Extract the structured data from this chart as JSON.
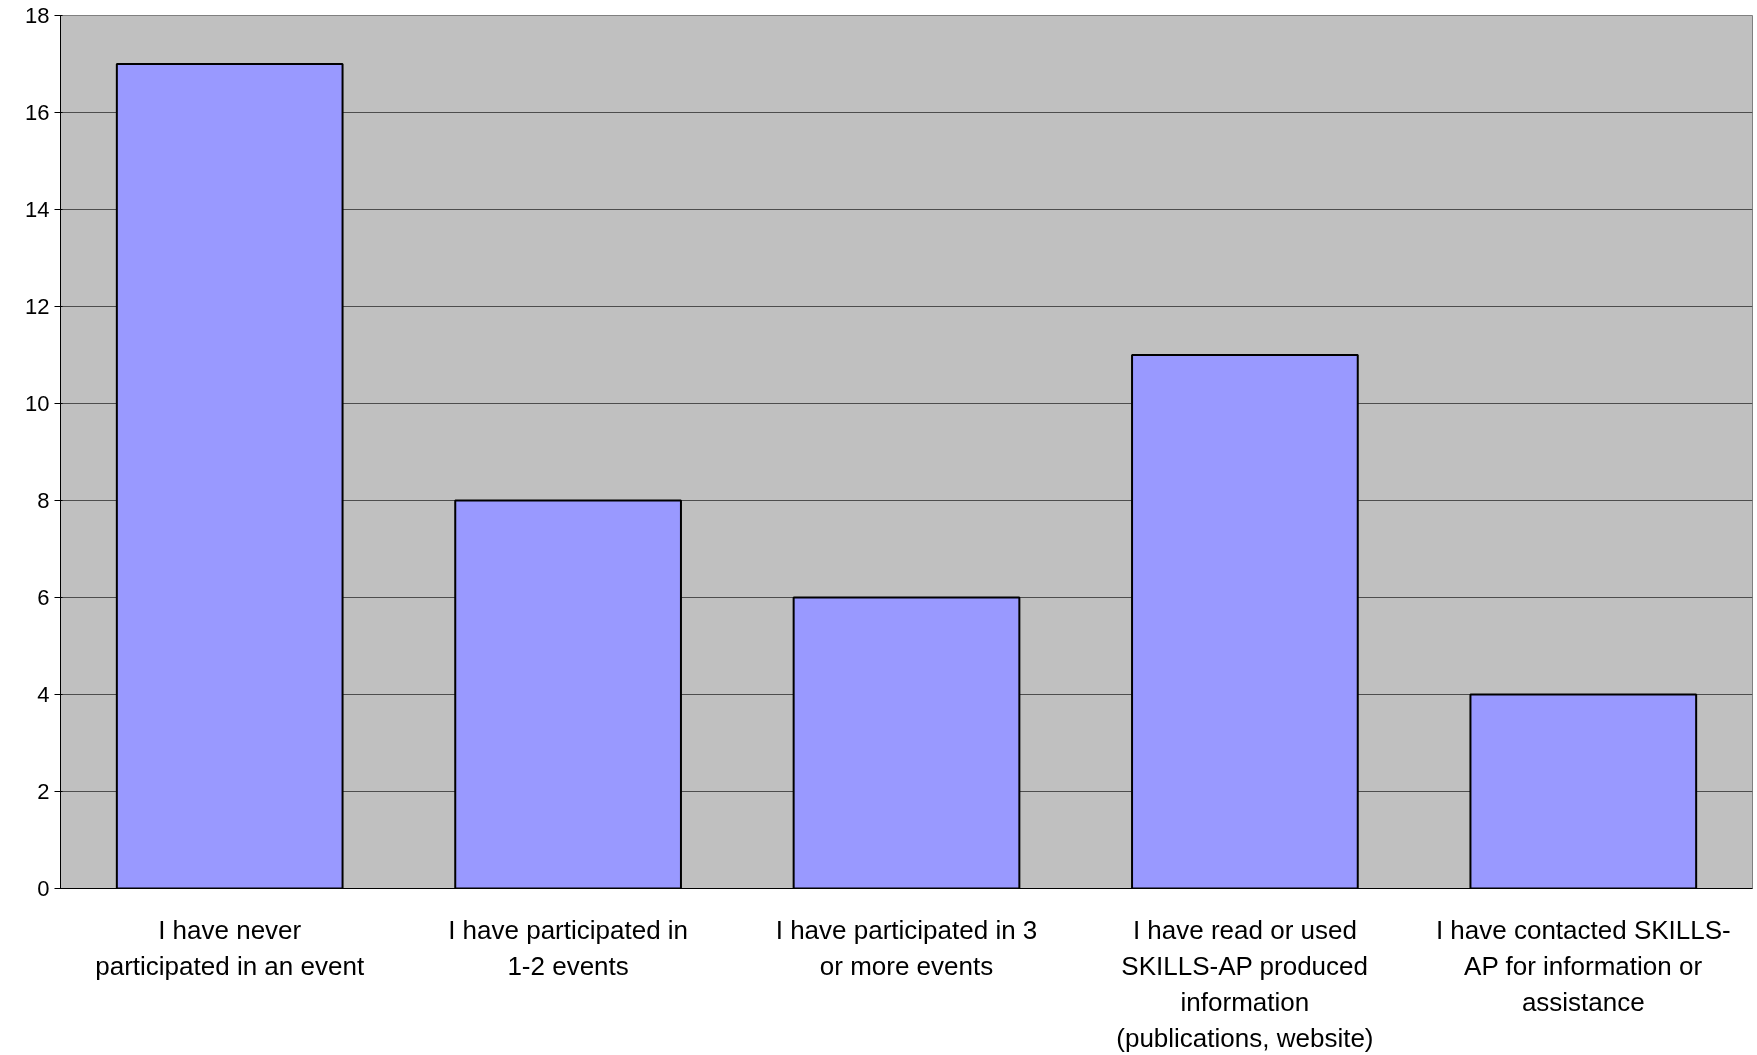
{
  "chart_data": {
    "type": "bar",
    "categories": [
      "I have never participated in an event",
      "I have participated in 1-2 events",
      "I have participated in 3 or more events",
      "I have read or used SKILLS-AP produced information (publications, website)",
      "I have contacted SKILLS-AP for information or assistance"
    ],
    "values": [
      17,
      8,
      6,
      11,
      4
    ],
    "color": "#9999ff",
    "ylim": [
      0,
      18
    ],
    "yticks": [
      0,
      2,
      4,
      6,
      8,
      10,
      12,
      14,
      16,
      18
    ],
    "grid": "y"
  }
}
